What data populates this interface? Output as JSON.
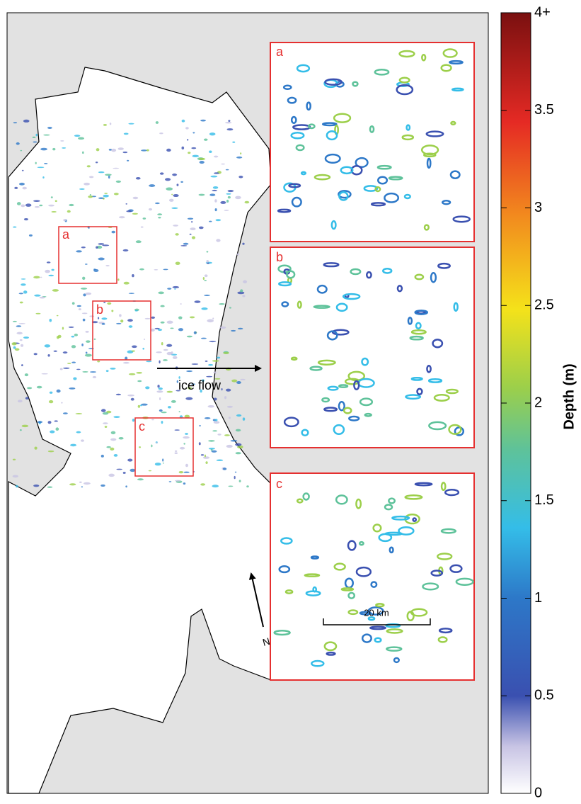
{
  "map": {
    "boxes": [
      "a",
      "b",
      "c"
    ],
    "flow_label": "ice flow",
    "north_label": "N",
    "scale_label": "20 km"
  },
  "insets": [
    "a",
    "b",
    "c"
  ],
  "colorbar": {
    "title": "Depth (m)",
    "lim": [
      0,
      4
    ],
    "ticks": [
      0,
      0.5,
      1,
      1.5,
      2,
      2.5,
      3,
      3.5,
      {
        "value": 4,
        "label": "4+"
      }
    ]
  }
}
